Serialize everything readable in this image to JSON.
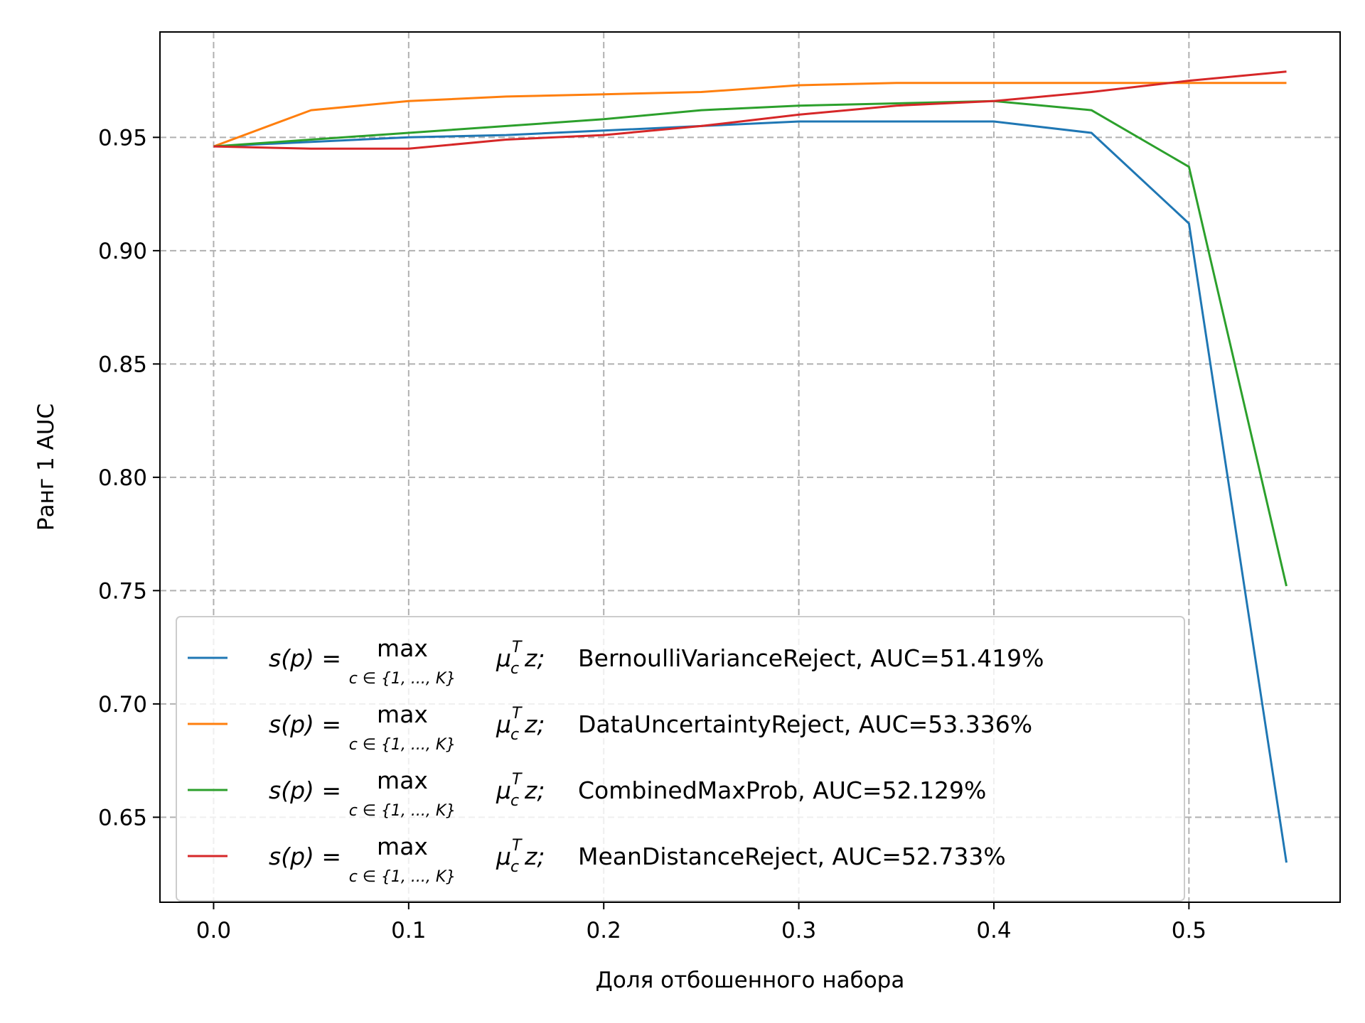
{
  "chart_data": {
    "type": "line",
    "xlabel": "Доля отбошенного набора",
    "ylabel": "Ранг 1 AUC",
    "xlim": [
      -0.0275,
      0.5775
    ],
    "ylim": [
      0.6125,
      0.9965
    ],
    "xticks": [
      0.0,
      0.1,
      0.2,
      0.3,
      0.4,
      0.5
    ],
    "xtick_labels": [
      "0.0",
      "0.1",
      "0.2",
      "0.3",
      "0.4",
      "0.5"
    ],
    "yticks": [
      0.65,
      0.7,
      0.75,
      0.8,
      0.85,
      0.9,
      0.95
    ],
    "ytick_labels": [
      "0.65",
      "0.70",
      "0.75",
      "0.80",
      "0.85",
      "0.90",
      "0.95"
    ],
    "grid": true,
    "legend_position": "lower-left",
    "legend_formula": {
      "lhs": "s(p) =",
      "op": "max",
      "sub": "c ∈ {1, ..., K}",
      "mu": "μ",
      "mu_sub": "c",
      "mu_sup": "T",
      "tail": "z;"
    },
    "x": [
      0.0,
      0.05,
      0.1,
      0.15,
      0.2,
      0.25,
      0.3,
      0.35,
      0.4,
      0.45,
      0.5,
      0.55
    ],
    "series": [
      {
        "name": "BernoulliVarianceReject, AUC=51.419%",
        "color": "#1f77b4",
        "values": [
          0.946,
          0.948,
          0.95,
          0.951,
          0.953,
          0.955,
          0.957,
          0.957,
          0.957,
          0.952,
          0.912,
          0.63
        ]
      },
      {
        "name": "DataUncertaintyReject, AUC=53.336%",
        "color": "#ff7f0e",
        "values": [
          0.946,
          0.962,
          0.966,
          0.968,
          0.969,
          0.97,
          0.973,
          0.974,
          0.974,
          0.974,
          0.974,
          0.974
        ]
      },
      {
        "name": "CombinedMaxProb, AUC=52.129%",
        "color": "#2ca02c",
        "values": [
          0.946,
          0.949,
          0.952,
          0.955,
          0.958,
          0.962,
          0.964,
          0.965,
          0.966,
          0.962,
          0.937,
          0.752
        ]
      },
      {
        "name": "MeanDistanceReject, AUC=52.733%",
        "color": "#d62728",
        "values": [
          0.946,
          0.945,
          0.945,
          0.949,
          0.951,
          0.955,
          0.96,
          0.964,
          0.966,
          0.97,
          0.975,
          0.979
        ]
      }
    ]
  }
}
